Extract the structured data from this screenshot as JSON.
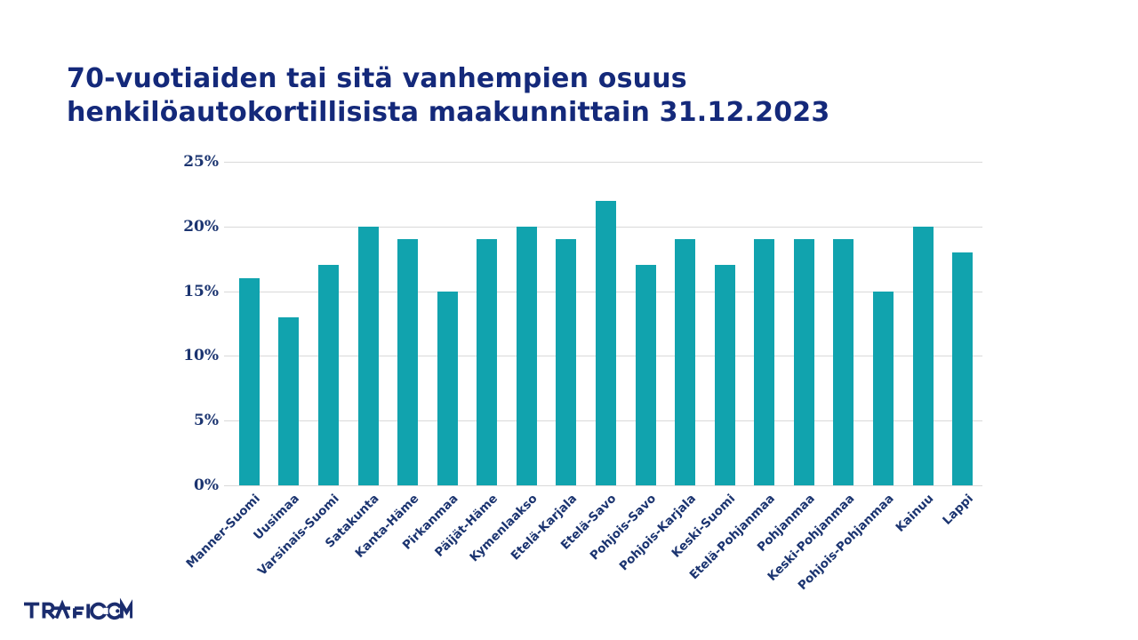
{
  "page": {
    "title_line1": "70-vuotiaiden tai sitä vanhempien osuus",
    "title_line2": "henkilöautokortillisista maakunnittain 31.12.2023",
    "logo_text": "TRAFICOM"
  },
  "colors": {
    "title_navy": "#14297A",
    "axis_label_navy": "#1B3470",
    "bar_teal": "#11A3AE",
    "gridline_gray": "#D9D9D9",
    "logo_navy": "#1B2D6E"
  },
  "chart_data": {
    "type": "bar",
    "title": "70-vuotiaiden tai sitä vanhempien osuus henkilöautokortillisista maakunnittain 31.12.2023",
    "categories": [
      "Manner-Suomi",
      "Uusimaa",
      "Varsinais-Suomi",
      "Satakunta",
      "Kanta-Häme",
      "Pirkanmaa",
      "Päijät-Häme",
      "Kymenlaakso",
      "Etelä-Karjala",
      "Etelä-Savo",
      "Pohjois-Savo",
      "Pohjois-Karjala",
      "Keski-Suomi",
      "Etelä-Pohjanmaa",
      "Pohjanmaa",
      "Keski-Pohjanmaa",
      "Pohjois-Pohjanmaa",
      "Kainuu",
      "Lappi"
    ],
    "values": [
      16,
      13,
      17,
      20,
      19,
      15,
      19,
      20,
      19,
      22,
      17,
      19,
      17,
      19,
      19,
      19,
      15,
      20,
      18
    ],
    "unit": "%",
    "xlabel": "",
    "ylabel": "",
    "ylim": [
      0,
      25
    ],
    "yticks": [
      0,
      5,
      10,
      15,
      20,
      25
    ],
    "ytick_labels": [
      "0%",
      "5%",
      "10%",
      "15%",
      "20%",
      "25%"
    ],
    "grid": true,
    "legend": "none"
  }
}
